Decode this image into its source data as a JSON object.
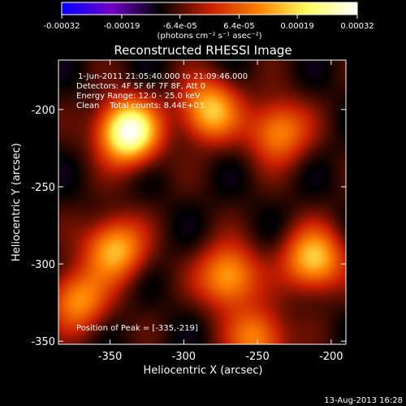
{
  "chart_data": {
    "type": "heatmap",
    "title": "Reconstructed RHESSI Image",
    "xlabel": "Heliocentric X (arcsec)",
    "ylabel": "Heliocentric Y (arcsec)",
    "xlim": [
      -385,
      -190
    ],
    "ylim": [
      -352,
      -168
    ],
    "x_ticks": [
      "-350",
      "-300",
      "-250",
      "-200"
    ],
    "x_tick_values": [
      -350,
      -300,
      -250,
      -200
    ],
    "y_ticks": [
      "-200",
      "-250",
      "-300",
      "-350"
    ],
    "y_tick_values": [
      -200,
      -250,
      -300,
      -350
    ],
    "colorbar": {
      "label": "(photons cm⁻² s⁻¹ asec⁻²)",
      "ticks": [
        "-0.00032",
        "-0.00019",
        "-6.4e-05",
        "6.4e-05",
        "0.00019",
        "0.00032"
      ],
      "tick_values": [
        -0.00032,
        -0.00019,
        -6.4e-05,
        6.4e-05,
        0.00019,
        0.00032
      ],
      "range": [
        -0.00032,
        0.00032
      ],
      "colors": [
        "#0000ff",
        "#7000c8",
        "#000000",
        "#c81e00",
        "#ff8000",
        "#ffff60",
        "#ffffff"
      ]
    },
    "annotations": {
      "time": "1-Jun-2011 21:05:40.000 to 21:09:46.000",
      "detectors": "Detectors: 4F 5F 6F 7F 8F, Att 0",
      "energy": "Energy Range: 12.0 - 25.0 keV",
      "method": "Clean    Total counts: 8.44E+03",
      "peak": "Position of Peak = [-335,-219]"
    },
    "sources": [
      {
        "x": -338,
        "y": -214,
        "value": 0.00032
      },
      {
        "x": -283,
        "y": -200,
        "value": 0.00017
      },
      {
        "x": -347,
        "y": -290,
        "value": 0.00016
      },
      {
        "x": -270,
        "y": -308,
        "value": 0.00015
      },
      {
        "x": -212,
        "y": -297,
        "value": 0.00018
      },
      {
        "x": -236,
        "y": -214,
        "value": 0.00012
      },
      {
        "x": -250,
        "y": -348,
        "value": 0.00011
      },
      {
        "x": -372,
        "y": -323,
        "value": 0.00012
      }
    ],
    "grid": false
  },
  "footer": {
    "date": "13-Aug-2013 16:28"
  }
}
